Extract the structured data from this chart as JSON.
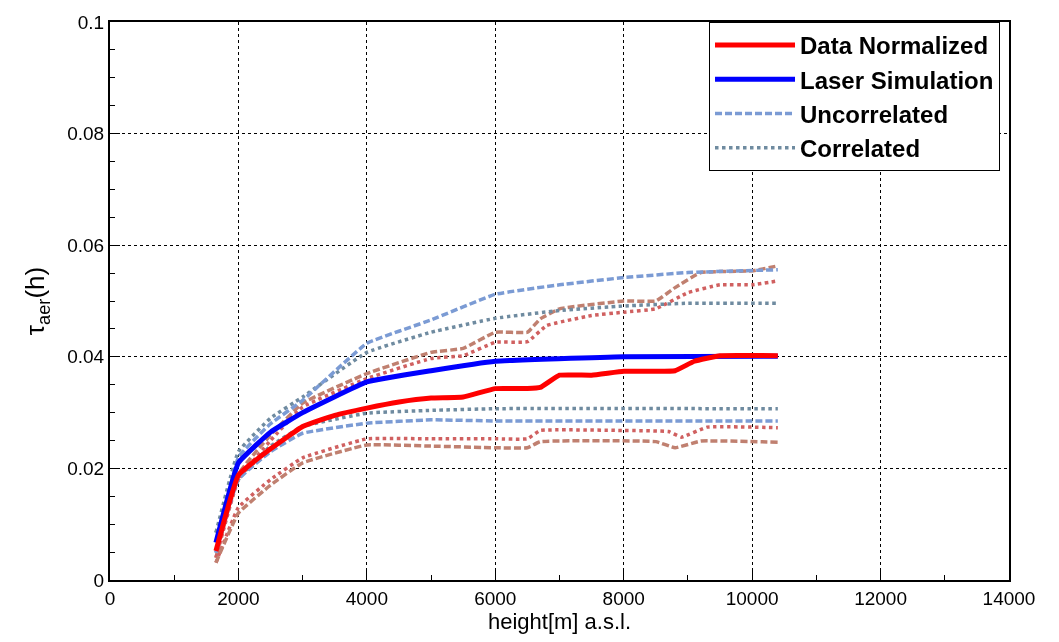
{
  "chart_data": {
    "type": "line",
    "xlabel": "height[m] a.s.l.",
    "ylabel": "τ$_{aer}$(h)",
    "xlim": [
      0,
      14000
    ],
    "xticks": [
      0,
      2000,
      4000,
      6000,
      8000,
      10000,
      12000,
      14000
    ],
    "ylim": [
      0,
      0.1
    ],
    "yticks": [
      0,
      0.02,
      0.04,
      0.06,
      0.08,
      0.1
    ],
    "grid": true,
    "legend": "top right",
    "marker": "none",
    "series": [
      {
        "color": "#c08070",
        "line_style": "dashed",
        "x": [
          1650,
          2000,
          2500,
          3000,
          4000,
          5000,
          5500,
          6000,
          6500,
          6700,
          7000,
          8000,
          8500,
          8800,
          9200,
          10000,
          10400
        ],
        "values": [
          0.004,
          0.019,
          0.026,
          0.0317,
          0.037,
          0.0408,
          0.0415,
          0.0444,
          0.0444,
          0.0468,
          0.0486,
          0.05,
          0.05,
          0.0524,
          0.0551,
          0.0554,
          0.0563
        ]
      },
      {
        "color": "#d06060",
        "line_style": "dotted",
        "x": [
          1650,
          2000,
          2500,
          3000,
          4000,
          5000,
          5500,
          6000,
          6500,
          6800,
          7500,
          8000,
          8500,
          9000,
          9500,
          10000,
          10400
        ],
        "values": [
          0.004,
          0.018,
          0.025,
          0.031,
          0.0361,
          0.0397,
          0.0402,
          0.0426,
          0.0427,
          0.0456,
          0.0474,
          0.048,
          0.0486,
          0.0515,
          0.0529,
          0.0529,
          0.0536
        ]
      },
      {
        "color": "#d06060",
        "line_style": "dotted",
        "x": [
          1650,
          2000,
          2500,
          3000,
          4000,
          5000,
          6000,
          6500,
          6700,
          8000,
          8700,
          8900,
          9300,
          10400
        ],
        "values": [
          0.0031,
          0.013,
          0.018,
          0.0219,
          0.0253,
          0.0253,
          0.0253,
          0.0253,
          0.0268,
          0.0268,
          0.0266,
          0.0256,
          0.0274,
          0.0273
        ]
      },
      {
        "color": "#c08070",
        "line_style": "dashed",
        "x": [
          1650,
          2000,
          2500,
          3000,
          4000,
          5000,
          6000,
          6500,
          6700,
          8500,
          8800,
          9200,
          10400
        ],
        "values": [
          0.0031,
          0.012,
          0.017,
          0.021,
          0.0242,
          0.024,
          0.0237,
          0.0237,
          0.0248,
          0.0248,
          0.0237,
          0.0249,
          0.0247
        ]
      },
      {
        "name": "Correlated",
        "color": "#6f8ba0",
        "line_style": "dotted",
        "x": [
          1650,
          2000,
          2500,
          3000,
          4000,
          5000,
          6000,
          7000,
          8000,
          9000,
          10400
        ],
        "values": [
          0.0085,
          0.023,
          0.029,
          0.0328,
          0.0408,
          0.0444,
          0.0469,
          0.0483,
          0.0491,
          0.0496,
          0.0496
        ]
      },
      {
        "color": "#6f8ba0",
        "line_style": "dotted",
        "x": [
          1650,
          2000,
          2500,
          3000,
          4000,
          5000,
          6000,
          10400
        ],
        "values": [
          0.0085,
          0.018,
          0.024,
          0.0275,
          0.0299,
          0.0304,
          0.0307,
          0.0307
        ]
      },
      {
        "name": "Uncorrelated",
        "color": "#7b9bd4",
        "line_style": "dashed",
        "x": [
          1650,
          2000,
          2500,
          3000,
          4000,
          5000,
          6000,
          7000,
          8000,
          9000,
          10400
        ],
        "values": [
          0.0049,
          0.022,
          0.028,
          0.0322,
          0.0424,
          0.0466,
          0.0512,
          0.0529,
          0.0542,
          0.0551,
          0.0556
        ]
      },
      {
        "color": "#7b9bd4",
        "line_style": "dashed",
        "x": [
          1650,
          2000,
          2500,
          3000,
          4000,
          5000,
          6000,
          10400
        ],
        "values": [
          0.0049,
          0.018,
          0.023,
          0.0263,
          0.0281,
          0.0287,
          0.0285,
          0.0285
        ]
      },
      {
        "name": "Laser Simulation",
        "color": "#0000ff",
        "line_style": "solid",
        "x": [
          1650,
          2000,
          2500,
          3000,
          4000,
          5000,
          6000,
          8000,
          10400
        ],
        "values": [
          0.0067,
          0.021,
          0.0265,
          0.03,
          0.0355,
          0.0375,
          0.0392,
          0.04,
          0.0401
        ]
      },
      {
        "name": "Data Normalized",
        "color": "#ff0000",
        "line_style": "solid",
        "x": [
          1650,
          2000,
          2500,
          3000,
          3500,
          4000,
          4500,
          5000,
          5500,
          6000,
          6500,
          6700,
          7000,
          7500,
          8000,
          8500,
          8800,
          9100,
          9500,
          10400
        ],
        "values": [
          0.0052,
          0.0188,
          0.0235,
          0.0275,
          0.0295,
          0.0308,
          0.0319,
          0.0326,
          0.0328,
          0.0343,
          0.0343,
          0.0345,
          0.0367,
          0.0367,
          0.0374,
          0.0374,
          0.0375,
          0.0392,
          0.0402,
          0.0402
        ]
      }
    ]
  }
}
